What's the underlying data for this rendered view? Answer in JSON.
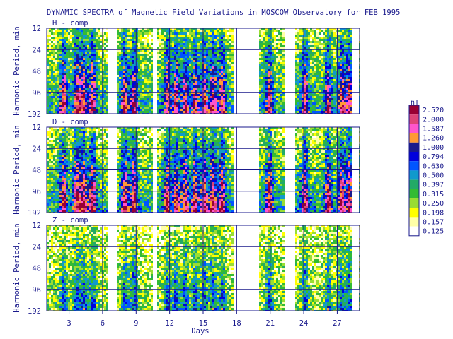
{
  "chart_data": {
    "type": "heatmap",
    "title": "DYNAMIC SPECTRA of Magnetic Field Variations in MOSCOW Observatory for FEB 1995",
    "xlabel": "Days",
    "ylabel": "Harmonic Period, min",
    "xlim": [
      1,
      29
    ],
    "x_ticks": [
      "3",
      "6",
      "9",
      "12",
      "15",
      "18",
      "21",
      "24",
      "27"
    ],
    "y_scale": "log2",
    "y_ticks": [
      "12",
      "24",
      "48",
      "96",
      "192"
    ],
    "grid": true,
    "panels": [
      {
        "label": "H - comp",
        "intensity": 1.0
      },
      {
        "label": "D - comp",
        "intensity": 1.05
      },
      {
        "label": "Z - comp",
        "intensity": 0.55
      }
    ],
    "data_gaps_days": [
      [
        6.5,
        7.2
      ],
      [
        10.5,
        10.9
      ],
      [
        17.7,
        20.0
      ],
      [
        22.3,
        23.2
      ],
      [
        28.4,
        29.0
      ]
    ],
    "active_days": [
      2.5,
      3.7,
      4.3,
      5.1,
      8.0,
      8.8,
      11.8,
      12.6,
      13.4,
      14.3,
      15.1,
      15.9,
      16.7,
      20.9,
      24.1,
      26.2,
      27.4,
      28.1
    ],
    "colorbar": {
      "unit": "nT",
      "levels": [
        "0.125",
        "0.157",
        "0.198",
        "0.250",
        "0.315",
        "0.397",
        "0.500",
        "0.630",
        "0.794",
        "1.000",
        "1.260",
        "1.587",
        "2.000",
        "2.520"
      ],
      "colors": [
        "#ffffff",
        "#ffffa8",
        "#ffff00",
        "#99dd33",
        "#33bb33",
        "#22aa66",
        "#1199cc",
        "#0055ff",
        "#0000dd",
        "#1a1a8c",
        "#ff9933",
        "#ff55cc",
        "#dd4477",
        "#990033"
      ]
    }
  }
}
